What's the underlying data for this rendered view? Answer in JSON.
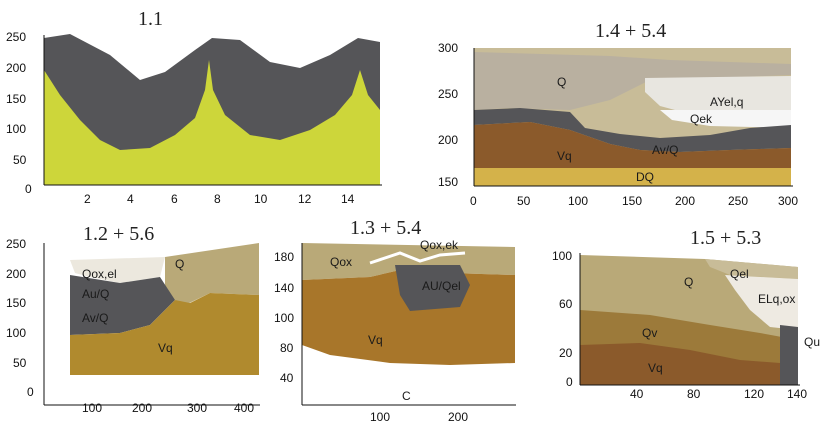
{
  "panels": [
    {
      "title": "1.1",
      "y_ticks": [
        "250",
        "200",
        "150",
        "100",
        "50",
        "0"
      ],
      "x_ticks": [
        "2",
        "4",
        "6",
        "8",
        "10",
        "12",
        "14"
      ],
      "layer_labels": []
    },
    {
      "title": "1.4 + 5.4",
      "y_ticks": [
        "300",
        "250",
        "200",
        "150"
      ],
      "x_ticks": [
        "0",
        "50",
        "100",
        "150",
        "200",
        "250",
        "300"
      ],
      "layer_labels": [
        "Q",
        "AYel,q",
        "Qek",
        "Av/Q",
        "Vq",
        "DQ"
      ]
    },
    {
      "title": "1.2 + 5.6",
      "y_ticks": [
        "250",
        "200",
        "150",
        "100",
        "50",
        "0"
      ],
      "x_ticks": [
        "100",
        "200",
        "300",
        "400"
      ],
      "layer_labels": [
        "Qox,el",
        "Q",
        "Au/Q",
        "Av/Q",
        "Vq"
      ]
    },
    {
      "title": "1.3 + 5.4",
      "y_ticks": [
        "180",
        "140",
        "100",
        "80",
        "40"
      ],
      "x_ticks": [
        "100",
        "200"
      ],
      "layer_labels": [
        "Qox,ek",
        "Qox",
        "AU/Qel",
        "Vq",
        "C"
      ]
    },
    {
      "title": "1.5 + 5.3",
      "y_ticks": [
        "100",
        "60",
        "20",
        "0"
      ],
      "x_ticks": [
        "40",
        "80",
        "120",
        "140"
      ],
      "layer_labels": [
        "Q",
        "Qel",
        "ELq,ox",
        "Qv",
        "Vq",
        "Qu"
      ]
    }
  ],
  "colors": {
    "dark_gray": "#555558",
    "yellow_green": "#cdd63a",
    "khaki": "#b9a978",
    "light_khaki": "#c8bc98",
    "olive_brown": "#8a6a2c",
    "golden": "#b08a2e",
    "brown": "#8b5a2b",
    "pale": "#e8e6e0",
    "white": "#f6f6f6"
  }
}
